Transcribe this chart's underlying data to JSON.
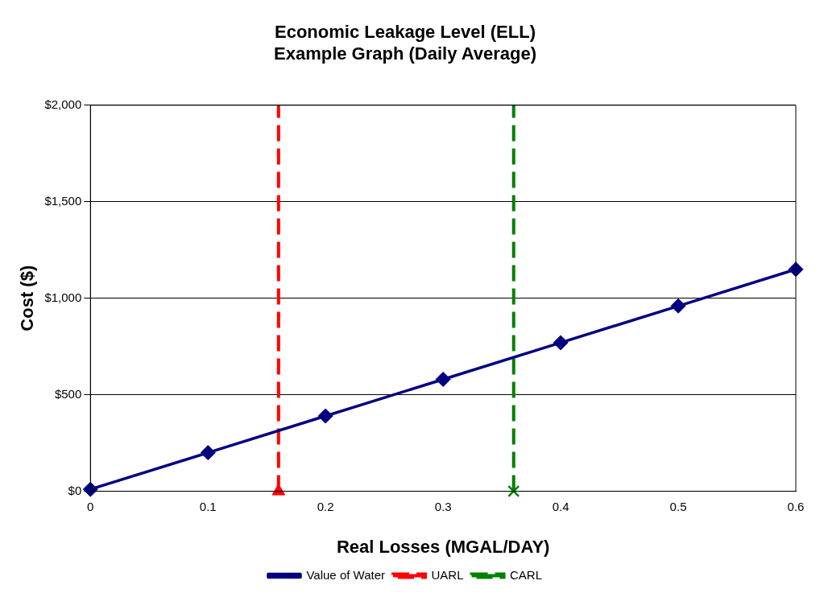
{
  "chart_data": {
    "type": "line",
    "title": [
      "Economic Leakage Level (ELL)",
      "Example Graph (Daily Average)"
    ],
    "xlabel": "Real Losses (MGAL/DAY)",
    "ylabel": "Cost ($)",
    "x": [
      0,
      0.1,
      0.2,
      0.3,
      0.4,
      0.5,
      0.6
    ],
    "series": [
      {
        "name": "Value of Water",
        "color": "#000080",
        "values": [
          10,
          200,
          390,
          580,
          770,
          960,
          1150
        ],
        "marker": "diamond",
        "line_style": "solid"
      },
      {
        "type": "scatter",
        "color": "#ff0000",
        "x": [
          0.16
        ],
        "values": [
          0
        ],
        "marker": "triangle"
      },
      {
        "type": "scatter",
        "color": "#008000",
        "x": [
          0.36
        ],
        "values": [
          0
        ],
        "marker": "cross"
      }
    ],
    "ref_lines": [
      {
        "axis": "x",
        "value": 0.16,
        "label": "UARL",
        "color": "#ff0000",
        "line_style": "dashed"
      },
      {
        "axis": "x",
        "value": 0.36,
        "label": "CARL",
        "color": "#008000",
        "line_style": "dashed"
      }
    ],
    "xlim": [
      0,
      0.6
    ],
    "xticks": [
      0,
      0.1,
      0.2,
      0.3,
      0.4,
      0.5,
      0.6
    ],
    "ylim": [
      0,
      2000
    ],
    "yticks": [
      {
        "value": 0,
        "label": "$0"
      },
      {
        "value": 500,
        "label": "$500"
      },
      {
        "value": 1000,
        "label": "$1,000"
      },
      {
        "value": 1500,
        "label": "$1,500"
      },
      {
        "value": 2000,
        "label": "$2,000"
      }
    ],
    "grid": "y",
    "legend": "bottom"
  }
}
